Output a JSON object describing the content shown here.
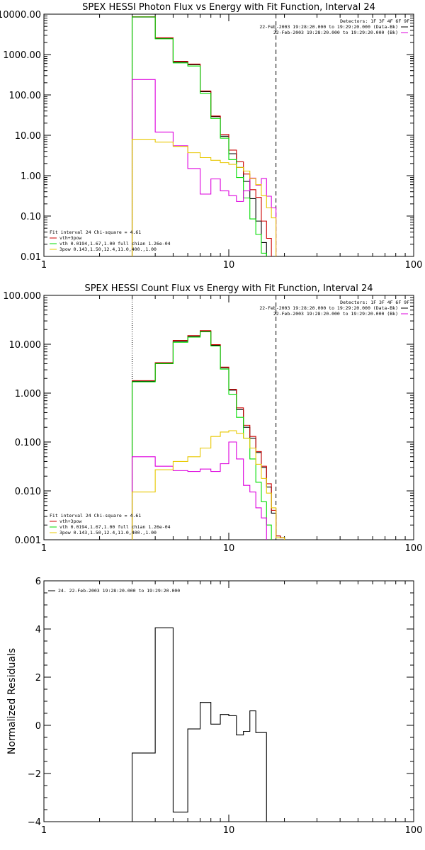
{
  "colors": {
    "black": "#000000",
    "red": "#cc0000",
    "green": "#00dd00",
    "magenta": "#dd00dd",
    "yellow": "#e8c800"
  },
  "chart_data": [
    {
      "type": "line",
      "scale": "log-log",
      "title": "SPEX HESSI Photon Flux vs Energy with Fit Function, Interval 24",
      "xlim": [
        1,
        100
      ],
      "ylim": [
        0.01,
        10000
      ],
      "xticks": [
        {
          "v": 1,
          "label": "1"
        },
        {
          "v": 10,
          "label": "10"
        },
        {
          "v": 100,
          "label": "100"
        }
      ],
      "yticks": [
        {
          "v": 0.01,
          "label": "0.01"
        },
        {
          "v": 0.1,
          "label": "0.10"
        },
        {
          "v": 1,
          "label": "1.00"
        },
        {
          "v": 10,
          "label": "10.00"
        },
        {
          "v": 100,
          "label": "100.00"
        },
        {
          "v": 1000,
          "label": "1000.00"
        },
        {
          "v": 10000,
          "label": "10000.00"
        }
      ],
      "vlines": [
        {
          "x": 3,
          "style": "dotted"
        },
        {
          "x": 18,
          "style": "dashed"
        }
      ],
      "bin_edges": [
        3,
        4,
        5,
        6,
        7,
        8,
        9,
        10,
        11,
        12,
        13,
        14,
        15,
        16,
        17,
        18
      ],
      "series": [
        {
          "color": "black",
          "values": [
            8500,
            2500,
            650,
            560,
            120,
            29,
            9.5,
            3.5,
            1.6,
            0.72,
            0.27,
            0.075,
            0.022
          ]
        },
        {
          "color": "red",
          "values": [
            8600,
            2600,
            680,
            580,
            125,
            30,
            10.5,
            4.3,
            2.2,
            1.1,
            0.45,
            0.29,
            0.075,
            0.028
          ]
        },
        {
          "color": "green",
          "values": [
            8550,
            2450,
            620,
            520,
            110,
            26,
            8.5,
            2.5,
            0.9,
            0.28,
            0.085,
            0.035,
            0.012,
            0.004
          ]
        },
        {
          "color": "magenta",
          "values": [
            240,
            12,
            5.5,
            1.5,
            0.35,
            0.83,
            0.42,
            0.32,
            0.23,
            0.42,
            0.87,
            0.58,
            0.85,
            0.31,
            0.16,
            0.075,
            0.055
          ]
        },
        {
          "color": "yellow",
          "values": [
            8,
            6.8,
            5.3,
            3.7,
            2.8,
            2.4,
            2.1,
            1.9,
            1.6,
            1.3,
            0.85,
            0.6,
            0.32,
            0.16,
            0.09
          ]
        }
      ],
      "legend_bl": [
        {
          "text": "Fit interval 24    Chi-square = 4.61",
          "color": "black"
        },
        {
          "text": "vth+3pow",
          "color": "red"
        },
        {
          "text": "vth 0.0194,1.67,1.00  full chian 1.26e-04",
          "color": "green"
        },
        {
          "text": "3pow 0.143,1.50,12.4,11.0,400.,1.00",
          "color": "yellow"
        }
      ],
      "legend_tr": [
        {
          "text": "Detectors: 1F 3F 4F 6F 9F",
          "color": ""
        },
        {
          "text": "22-Feb-2003 19:28:20.000 to 19:29:20.000 (Data-Bk)",
          "color": "black"
        },
        {
          "text": "22-Feb-2003 19:28:20.000 to 19:29:20.000 (Bk)",
          "color": "magenta"
        }
      ]
    },
    {
      "type": "line",
      "scale": "log-log",
      "title": "SPEX HESSI Count Flux vs Energy with Fit Function, Interval 24",
      "xlim": [
        1,
        100
      ],
      "ylim": [
        0.001,
        100
      ],
      "xticks": [
        {
          "v": 1,
          "label": "1"
        },
        {
          "v": 10,
          "label": "10"
        },
        {
          "v": 100,
          "label": "100"
        }
      ],
      "yticks": [
        {
          "v": 0.001,
          "label": "0.001"
        },
        {
          "v": 0.01,
          "label": "0.010"
        },
        {
          "v": 0.1,
          "label": "0.100"
        },
        {
          "v": 1,
          "label": "1.000"
        },
        {
          "v": 10,
          "label": "10.000"
        },
        {
          "v": 100,
          "label": "100.000"
        }
      ],
      "vlines": [
        {
          "x": 3,
          "style": "dotted"
        },
        {
          "x": 18,
          "style": "dashed"
        }
      ],
      "bin_edges": [
        3,
        4,
        5,
        6,
        7,
        8,
        9,
        10,
        11,
        12,
        13,
        14,
        15,
        16,
        17,
        18,
        19,
        20
      ],
      "series": [
        {
          "color": "black",
          "values": [
            1.75,
            4.1,
            11.5,
            14.5,
            18.5,
            9.5,
            3.3,
            1.15,
            0.46,
            0.2,
            0.12,
            0.061,
            0.03,
            0.012,
            0.0035,
            0.0012,
            0.0011
          ]
        },
        {
          "color": "red",
          "values": [
            1.8,
            4.2,
            12,
            15,
            19,
            9.8,
            3.4,
            1.2,
            0.5,
            0.22,
            0.13,
            0.064,
            0.032,
            0.014,
            0.004,
            0.0012,
            0.0011
          ]
        },
        {
          "color": "green",
          "values": [
            1.7,
            4.0,
            11,
            14,
            18,
            9.2,
            3.1,
            0.95,
            0.32,
            0.12,
            0.045,
            0.015,
            0.006,
            0.002,
            0.0009
          ]
        },
        {
          "color": "magenta",
          "values": [
            0.05,
            0.032,
            0.026,
            0.025,
            0.028,
            0.025,
            0.036,
            0.1,
            0.045,
            0.013,
            0.0095,
            0.0045,
            0.0028
          ]
        },
        {
          "color": "yellow",
          "values": [
            0.0095,
            0.027,
            0.04,
            0.05,
            0.075,
            0.13,
            0.16,
            0.17,
            0.15,
            0.12,
            0.075,
            0.035,
            0.018,
            0.009,
            0.0045,
            0.0011,
            0.0011
          ]
        }
      ],
      "legend_bl": [
        {
          "text": "Fit interval 24    Chi-square = 4.61",
          "color": "black"
        },
        {
          "text": "vth+3pow",
          "color": "red"
        },
        {
          "text": "vth 0.0194,1.67,1.00  full chian 1.26e-04",
          "color": "green"
        },
        {
          "text": "3pow 0.143,1.50,12.4,11.0,400.,1.00",
          "color": "yellow"
        }
      ],
      "legend_tr": [
        {
          "text": "Detectors: 1F 3F 4F 6F 9F",
          "color": ""
        },
        {
          "text": "22-Feb-2003 19:28:20.000 to 19:29:20.000 (Data-Bk)",
          "color": "black"
        },
        {
          "text": "22-Feb-2003 19:28:20.000 to 19:29:20.000 (Bk)",
          "color": "magenta"
        }
      ]
    },
    {
      "type": "line",
      "scale": "log-linear",
      "title": "",
      "ylabel": "Normalized Residuals",
      "xlim": [
        1,
        100
      ],
      "ylim": [
        -4,
        6
      ],
      "xticks": [
        {
          "v": 1,
          "label": "1"
        },
        {
          "v": 10,
          "label": "10"
        },
        {
          "v": 100,
          "label": "100"
        }
      ],
      "yticks": [
        {
          "v": -4,
          "label": "−4"
        },
        {
          "v": -2,
          "label": "−2"
        },
        {
          "v": 0,
          "label": "0"
        },
        {
          "v": 2,
          "label": "2"
        },
        {
          "v": 4,
          "label": "4"
        },
        {
          "v": 6,
          "label": "6"
        }
      ],
      "vlines": [],
      "bin_edges": [
        3,
        4,
        5,
        6,
        7,
        8,
        9,
        10,
        11,
        12,
        13,
        14,
        15,
        16,
        17,
        18
      ],
      "series": [
        {
          "color": "black",
          "values": [
            -1.15,
            4.05,
            -3.6,
            -0.15,
            0.95,
            0.05,
            0.45,
            0.4,
            -0.4,
            -0.25,
            0.6,
            -0.3,
            -0.3
          ]
        }
      ],
      "legend_bl": [],
      "legend_tr": [],
      "legend_tl": [
        {
          "text": "24. 22-Feb-2003 19:28:20.000 to 19:29:20.000",
          "color": "black"
        }
      ]
    }
  ]
}
